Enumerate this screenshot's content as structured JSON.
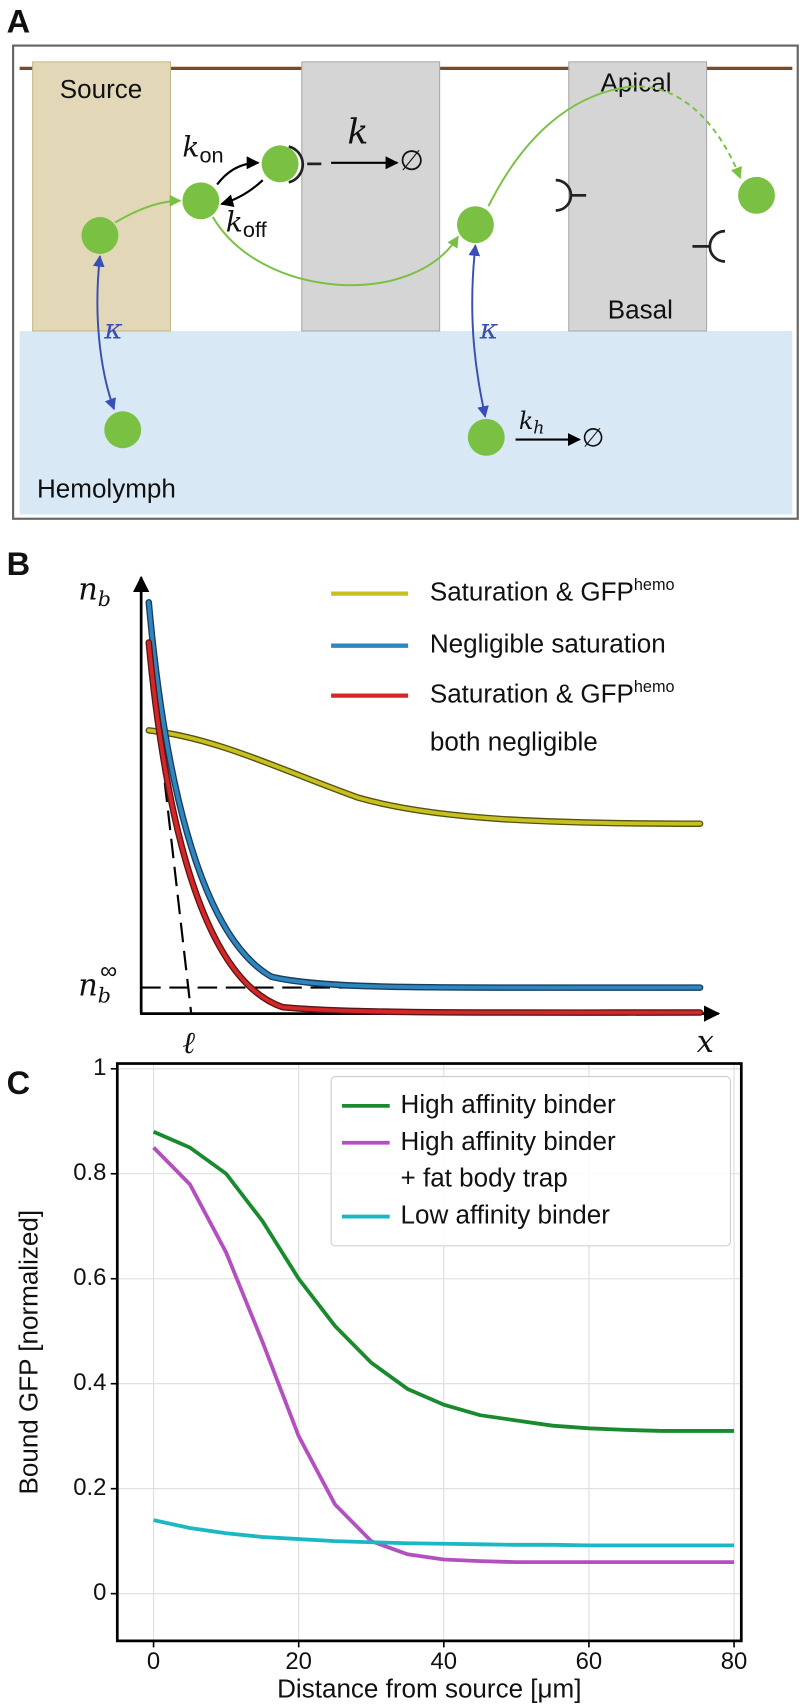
{
  "panel_a": {
    "label": "A",
    "source": "Source",
    "apical": "Apical",
    "basal": "Basal",
    "hemolymph": "Hemolymph",
    "k_on": {
      "symbol": "k",
      "subscript": "on"
    },
    "k_off": {
      "symbol": "k",
      "subscript": "off"
    },
    "k": {
      "symbol": "k",
      "target": "∅"
    },
    "kappa_left": "κ",
    "kappa_right": "κ",
    "k_h": {
      "symbol": "k",
      "subscript": "h",
      "target": "∅"
    }
  },
  "panel_b": {
    "label": "B",
    "y_label": {
      "symbol": "n",
      "subscript": "b"
    },
    "asymptote_label": {
      "symbol": "n",
      "subscript": "b",
      "superscript": "∞"
    },
    "length_label": "ℓ",
    "x_label": "x",
    "legend": [
      {
        "text": "Saturation & GFP",
        "superscript": "hemo",
        "color": "#c8c020"
      },
      {
        "text": "Negligible saturation",
        "color": "#2e86c1"
      },
      {
        "text": "Saturation & GFP",
        "superscript": "hemo",
        "line2": "both negligible",
        "color": "#d62728"
      }
    ]
  },
  "chart_data": {
    "type": "line",
    "panel_label": "C",
    "x_label": "Distance from source [μm]",
    "y_label": "Bound GFP [normalized]",
    "x": [
      0,
      5,
      10,
      15,
      20,
      25,
      30,
      35,
      40,
      45,
      50,
      55,
      60,
      65,
      70,
      75,
      80
    ],
    "series": [
      {
        "name": "High affinity binder",
        "color": "#1a8a2e",
        "values": [
          0.88,
          0.85,
          0.8,
          0.71,
          0.6,
          0.51,
          0.44,
          0.39,
          0.36,
          0.34,
          0.33,
          0.32,
          0.315,
          0.312,
          0.31,
          0.31,
          0.31
        ]
      },
      {
        "name": "High affinity binder\n+ fat body trap",
        "color": "#b44fc0",
        "values": [
          0.85,
          0.78,
          0.65,
          0.48,
          0.3,
          0.17,
          0.1,
          0.075,
          0.065,
          0.062,
          0.06,
          0.06,
          0.06,
          0.06,
          0.06,
          0.06,
          0.06
        ]
      },
      {
        "name": "Low affinity binder",
        "color": "#1ab8c4",
        "values": [
          0.14,
          0.125,
          0.115,
          0.108,
          0.104,
          0.1,
          0.098,
          0.096,
          0.095,
          0.094,
          0.093,
          0.093,
          0.092,
          0.092,
          0.092,
          0.092,
          0.092
        ]
      }
    ],
    "xlim": [
      -5,
      81
    ],
    "xticks": [
      0,
      20,
      40,
      60,
      80
    ],
    "ylim": [
      -0.09,
      1.01
    ],
    "yticks": [
      0,
      0.2,
      0.4,
      0.6,
      0.8,
      1
    ],
    "grid": true,
    "legend": "upper right"
  }
}
